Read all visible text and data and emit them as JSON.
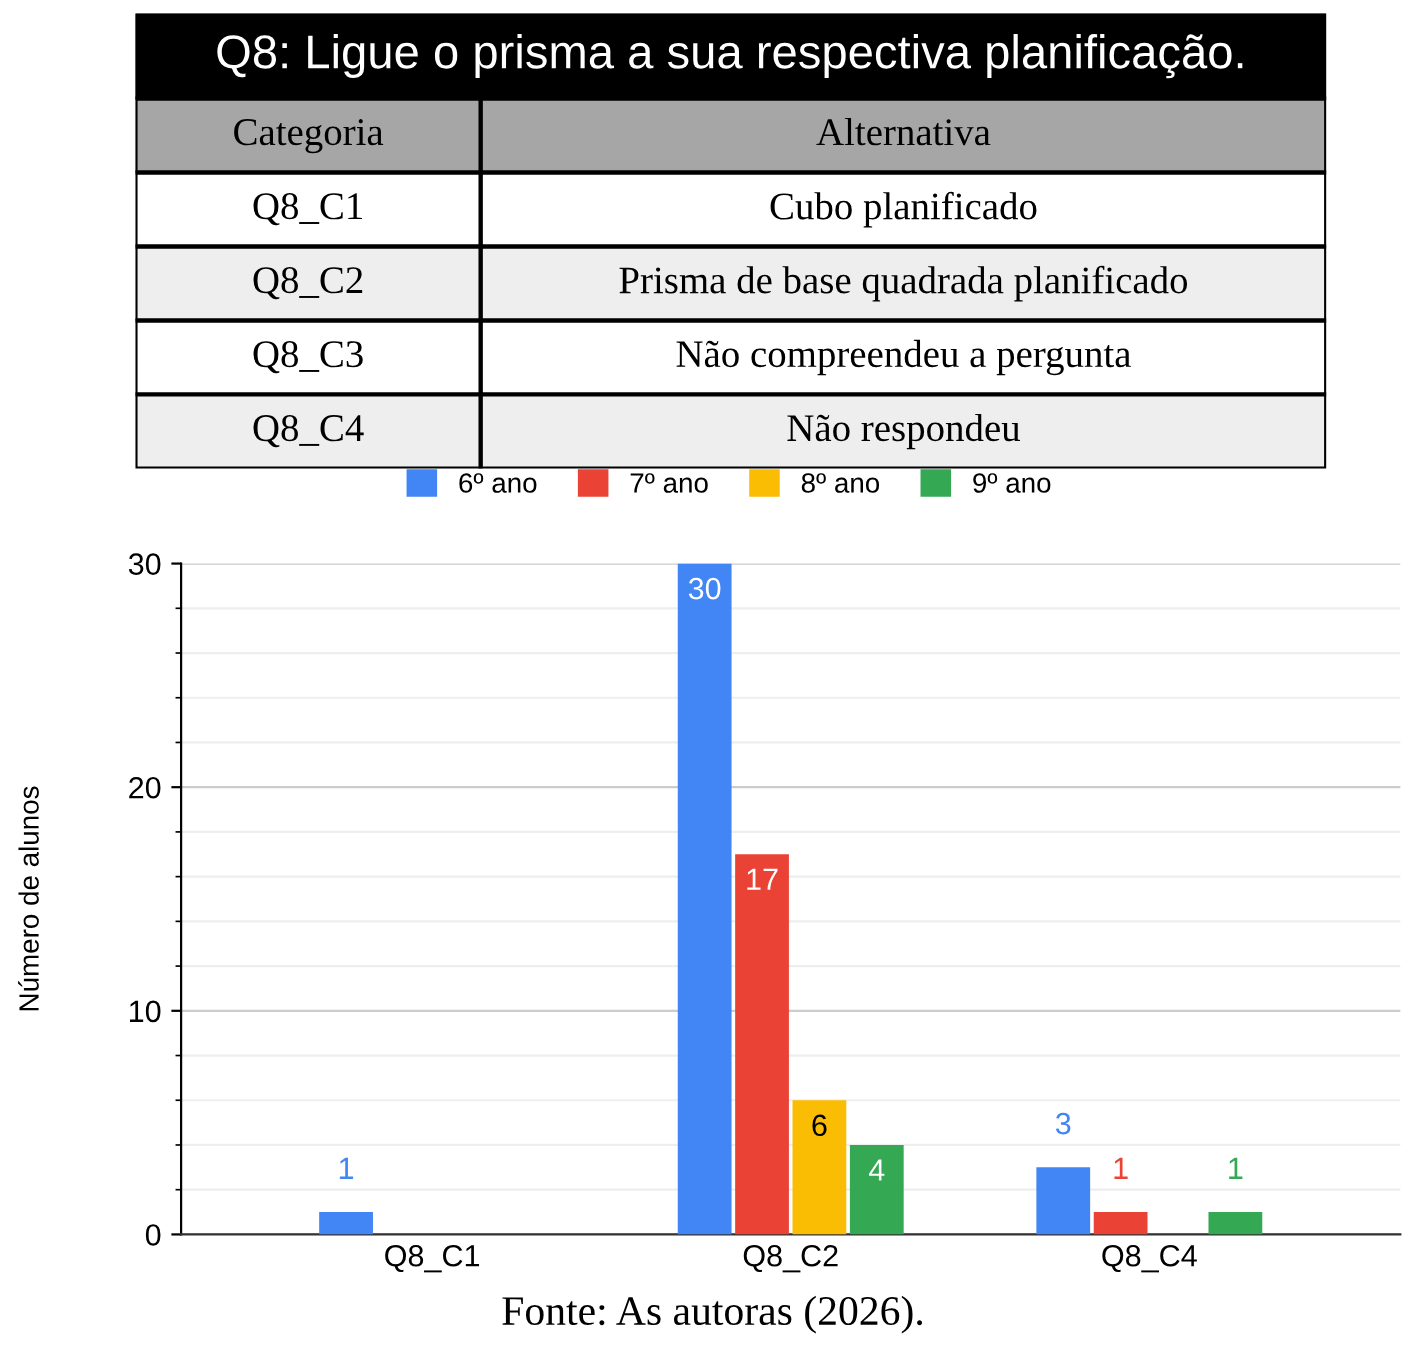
{
  "chart_data": [
    {
      "type": "other",
      "title": "Q8: Ligue o prisma a sua respectiva planificação.",
      "annotations": [
        "Categoria",
        "Alternativa",
        "Q8_C1",
        "Cubo planificado",
        "Q8_C2",
        "Prisma de base quadrada planificado",
        "Q8_C3",
        "Não compreendeu a pergunta",
        "Q8_C4",
        "Não respondeu"
      ]
    },
    {
      "type": "bar",
      "ylabel": "Número de alunos",
      "categories": [
        "Q8_C1",
        "Q8_C2",
        "Q8_C4"
      ],
      "series": [
        {
          "name": "6º ano",
          "color": "#4285f4",
          "values": [
            1,
            30,
            3
          ]
        },
        {
          "name": "7º ano",
          "color": "#ea4335",
          "values": [
            null,
            17,
            1
          ]
        },
        {
          "name": "8º ano",
          "color": "#fbbc04",
          "values": [
            null,
            6,
            null
          ]
        },
        {
          "name": "9º ano",
          "color": "#34a853",
          "values": [
            null,
            4,
            1
          ]
        }
      ],
      "ylim": [
        0,
        30
      ],
      "yticks": [
        0,
        10,
        20,
        30
      ],
      "grid": "y",
      "legend": "top",
      "data_labels": true,
      "annotations": [
        "Fonte: As autoras (2026)."
      ]
    }
  ]
}
